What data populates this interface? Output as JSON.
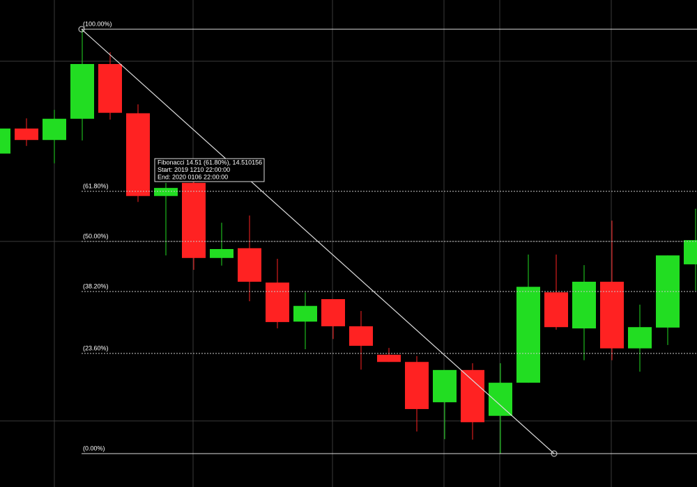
{
  "chart_data": {
    "type": "candlestick",
    "ylim": [
      0,
      100
    ],
    "open": [
      70.7,
      76.6,
      73.9,
      78.9,
      91.8,
      80.2,
      60.7,
      63.8,
      46.1,
      48.4,
      40.3,
      31.1,
      36.4,
      30.0,
      23.3,
      21.6,
      12.1,
      19.7,
      8.9,
      16.7,
      38.0,
      29.5,
      40.5,
      24.8,
      29.7,
      44.6
    ],
    "high": [
      77.4,
      79.0,
      81.0,
      100.0,
      94.6,
      82.3,
      63.8,
      65.1,
      54.4,
      56.1,
      45.9,
      38.0,
      36.4,
      33.6,
      24.9,
      23.0,
      19.7,
      21.3,
      21.3,
      46.9,
      46.9,
      44.4,
      54.9,
      35.1,
      46.7,
      57.7
    ],
    "low": [
      70.0,
      72.5,
      68.4,
      73.8,
      78.7,
      59.3,
      46.7,
      43.3,
      44.3,
      35.9,
      29.5,
      24.6,
      27.0,
      19.8,
      21.6,
      5.2,
      3.4,
      3.3,
      0,
      16.7,
      29.2,
      22.0,
      22.0,
      19.3,
      25.6,
      38.4
    ],
    "close": [
      76.6,
      73.9,
      78.9,
      91.8,
      80.3,
      60.7,
      62.6,
      46.1,
      48.2,
      40.5,
      31.0,
      34.8,
      30.0,
      25.4,
      21.6,
      10.5,
      19.7,
      7.4,
      16.7,
      39.3,
      29.8,
      40.5,
      24.8,
      29.8,
      46.7,
      50.3
    ],
    "up_color": "#22dd22",
    "down_color": "#ff2222",
    "fib_levels": [
      {
        "value": 100,
        "label": "(100.00%)"
      },
      {
        "value": 61.8,
        "label": "(61.80%)"
      },
      {
        "value": 50,
        "label": "(50.00%)"
      },
      {
        "value": 38.2,
        "label": "(38.20%)"
      },
      {
        "value": 23.6,
        "label": "(23.60%)"
      },
      {
        "value": 0,
        "label": "(0.00%)"
      }
    ],
    "annotations": [
      "Fibonacci 14.51 (61.80%), 14.510156",
      "Start: 2019 1210 22:00:00",
      "End: 2020 0106 22:00:00"
    ]
  }
}
